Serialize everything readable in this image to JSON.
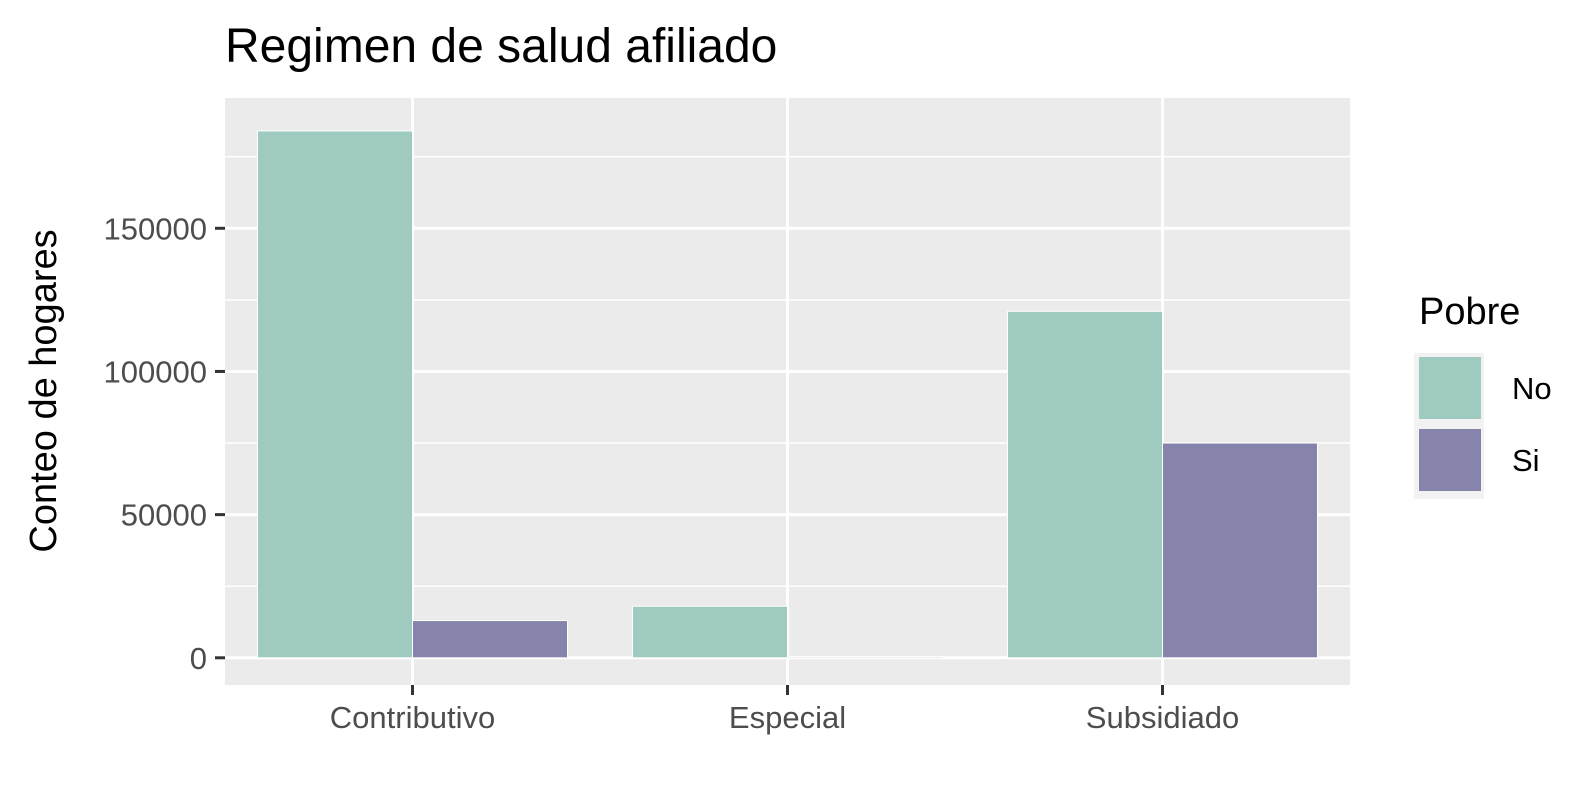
{
  "chart_data": {
    "type": "bar",
    "title": "Regimen de salud afiliado",
    "xlabel": "",
    "ylabel": "Conteo de hogares",
    "categories": [
      "Contributivo",
      "Especial",
      "Subsidiado"
    ],
    "series": [
      {
        "name": "No",
        "color": "#9fcabf",
        "values": [
          184000,
          18000,
          121000
        ]
      },
      {
        "name": "Si",
        "color": "#8684ab",
        "values": [
          13000,
          400,
          75000
        ]
      }
    ],
    "yticks": [
      0,
      50000,
      100000,
      150000
    ],
    "ytick_labels": [
      "0",
      "50000",
      "100000",
      "150000"
    ],
    "ylim": [
      -9500,
      195500
    ],
    "grid": true,
    "panel_background": "#ebebeb",
    "legend": {
      "title": "Pobre",
      "position": "right"
    }
  }
}
